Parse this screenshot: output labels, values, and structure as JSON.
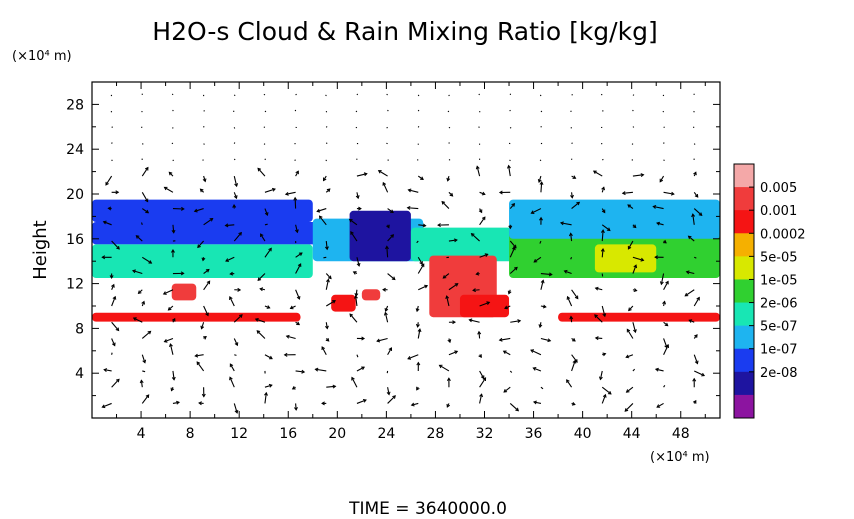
{
  "chart_data": {
    "type": "heatmap",
    "title": "H2O-s Cloud & Rain Mixing Ratio [kg/kg]",
    "xlabel": "",
    "ylabel": "Height",
    "x_unit": "(×10⁴ m)",
    "y_unit": "(×10⁴ m)",
    "x_range": [
      0,
      51.2
    ],
    "y_range": [
      0,
      30
    ],
    "x_ticks": [
      "4",
      "8",
      "12",
      "16",
      "20",
      "24",
      "28",
      "32",
      "36",
      "40",
      "44",
      "48"
    ],
    "y_ticks": [
      "4",
      "8",
      "12",
      "16",
      "20",
      "24",
      "28"
    ],
    "colorbar_labels": [
      "0.005",
      "0.001",
      "0.0002",
      "5e-05",
      "1e-05",
      "2e-06",
      "5e-07",
      "1e-07",
      "2e-08"
    ],
    "colorbar_colors": [
      "#f4a8a8",
      "#f03c3c",
      "#f51414",
      "#f5b000",
      "#d8e800",
      "#30d030",
      "#18e6b4",
      "#1eb4f0",
      "#1a3cf0",
      "#1e14a0",
      "#8c14a0"
    ],
    "vector_field": true,
    "footer": "TIME = 3640000.0",
    "regions": [
      {
        "level": 8,
        "x": [
          0,
          18
        ],
        "y": [
          17.5,
          19.5
        ]
      },
      {
        "level": 8,
        "x": [
          0,
          22
        ],
        "y": [
          15.5,
          17.5
        ]
      },
      {
        "level": 6,
        "x": [
          0,
          18
        ],
        "y": [
          12.5,
          15.5
        ]
      },
      {
        "level": 7,
        "x": [
          18,
          27
        ],
        "y": [
          14,
          17.8
        ]
      },
      {
        "level": 9,
        "x": [
          21,
          26
        ],
        "y": [
          14,
          18.5
        ]
      },
      {
        "level": 6,
        "x": [
          26,
          36
        ],
        "y": [
          14,
          17
        ]
      },
      {
        "level": 5,
        "x": [
          34,
          51.2
        ],
        "y": [
          12.5,
          17
        ]
      },
      {
        "level": 7,
        "x": [
          34,
          51.2
        ],
        "y": [
          16,
          19.5
        ]
      },
      {
        "level": 4,
        "x": [
          41,
          46
        ],
        "y": [
          13,
          15.5
        ]
      },
      {
        "level": 1,
        "x": [
          27.5,
          33
        ],
        "y": [
          9,
          14.5
        ]
      },
      {
        "level": 2,
        "x": [
          30,
          34
        ],
        "y": [
          9,
          11
        ]
      },
      {
        "level": 1,
        "x": [
          6.5,
          8.5
        ],
        "y": [
          10.5,
          12
        ]
      },
      {
        "level": 2,
        "x": [
          19.5,
          21.5
        ],
        "y": [
          9.5,
          11
        ]
      },
      {
        "level": 1,
        "x": [
          22,
          23.5
        ],
        "y": [
          10.5,
          11.5
        ]
      },
      {
        "level": 2,
        "x": [
          0,
          17
        ],
        "y": [
          8.6,
          9.4
        ]
      },
      {
        "level": 2,
        "x": [
          38,
          51.2
        ],
        "y": [
          8.6,
          9.4
        ]
      }
    ]
  }
}
